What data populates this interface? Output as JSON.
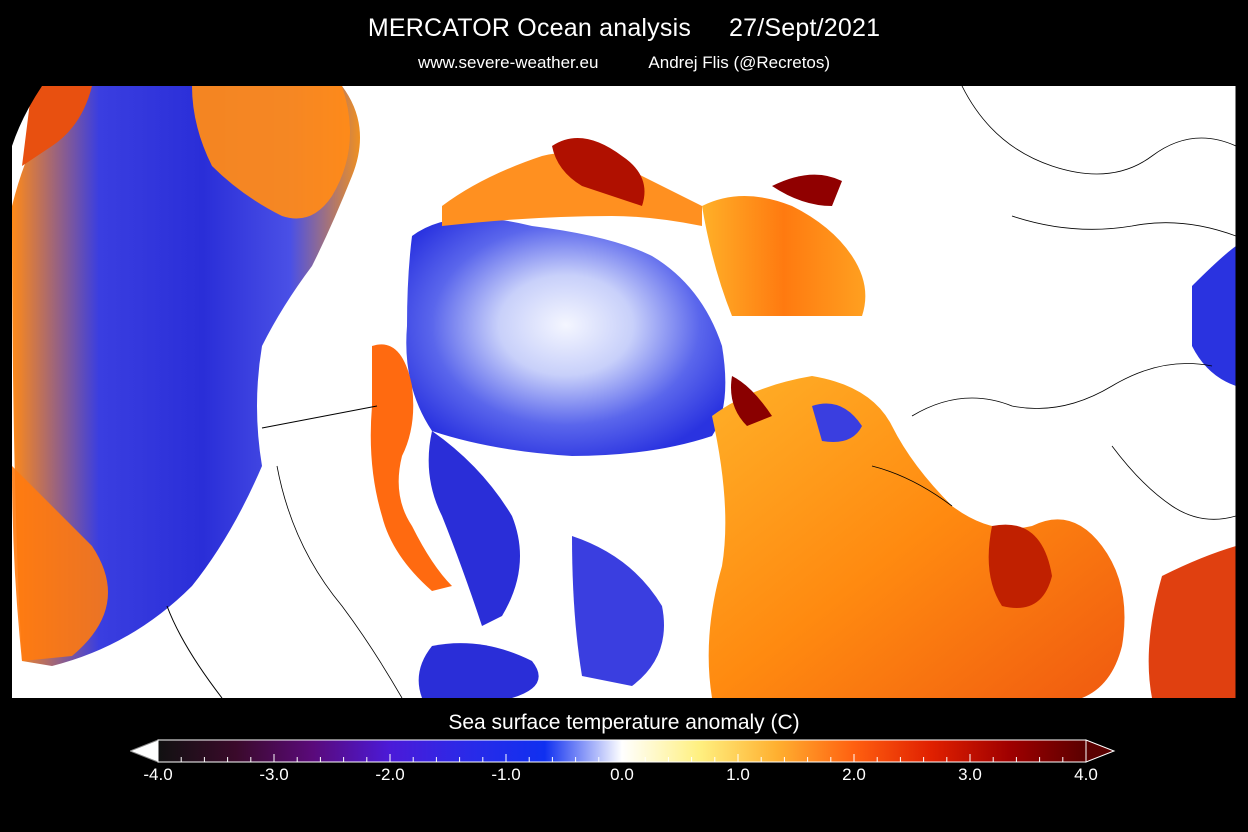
{
  "header": {
    "title_left": "MERCATOR Ocean analysis",
    "title_date": "27/Sept/2021",
    "subtitle_site": "www.severe-weather.eu",
    "subtitle_author": "Andrej Flis (@Recretos)"
  },
  "map": {
    "background_color": "#ffffff",
    "land_color": "#ffffff",
    "border_color": "#000000"
  },
  "colorbar": {
    "title": "Sea surface temperature anomaly (C)",
    "min": -4.0,
    "max": 4.0,
    "tick_labels": [
      "-4.0",
      "-3.0",
      "-2.0",
      "-1.0",
      "0.0",
      "1.0",
      "2.0",
      "3.0",
      "4.0"
    ],
    "colors": [
      "#111111",
      "#3a0a2a",
      "#5a0a7a",
      "#4b1ad8",
      "#2a2ae8",
      "#1030f0",
      "#ffffff",
      "#fff080",
      "#ffb030",
      "#ff6010",
      "#e02000",
      "#a00000",
      "#5a0000"
    ],
    "extend": "both"
  }
}
